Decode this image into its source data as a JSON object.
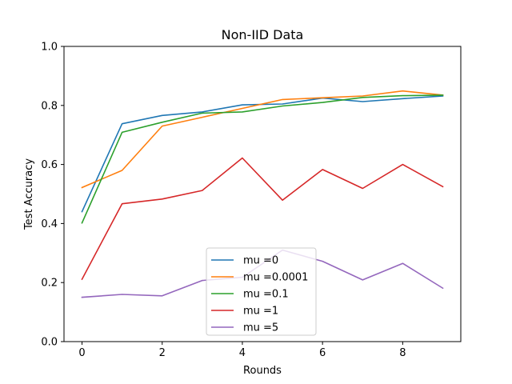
{
  "chart_data": {
    "type": "line",
    "title": "Non-IID Data",
    "xlabel": "Rounds",
    "ylabel": "Test Accuracy",
    "x": [
      0,
      1,
      2,
      3,
      4,
      5,
      6,
      7,
      8,
      9
    ],
    "xlim": [
      -0.45,
      9.45
    ],
    "ylim": [
      0.0,
      1.0
    ],
    "xticks": [
      0,
      2,
      4,
      6,
      8
    ],
    "xtick_labels": [
      "0",
      "2",
      "4",
      "6",
      "8"
    ],
    "yticks": [
      0.0,
      0.2,
      0.4,
      0.6,
      0.8,
      1.0
    ],
    "ytick_labels": [
      "0.0",
      "0.2",
      "0.4",
      "0.6",
      "0.8",
      "1.0"
    ],
    "grid": false,
    "legend_position": "bottom-center",
    "series": [
      {
        "name": "mu =0",
        "color": "#1f77b4",
        "values": [
          0.44,
          0.738,
          0.766,
          0.778,
          0.802,
          0.805,
          0.825,
          0.813,
          0.823,
          0.832
        ]
      },
      {
        "name": "mu =0.0001",
        "color": "#ff7f0e",
        "values": [
          0.522,
          0.58,
          0.73,
          0.76,
          0.79,
          0.82,
          0.826,
          0.832,
          0.849,
          0.835
        ]
      },
      {
        "name": "mu =0.1",
        "color": "#2ca02c",
        "values": [
          0.402,
          0.709,
          0.743,
          0.774,
          0.778,
          0.798,
          0.81,
          0.827,
          0.833,
          0.835
        ]
      },
      {
        "name": "mu =1",
        "color": "#d62728",
        "values": [
          0.211,
          0.467,
          0.483,
          0.512,
          0.622,
          0.479,
          0.583,
          0.519,
          0.6,
          0.525
        ]
      },
      {
        "name": "mu =5",
        "color": "#9467bd",
        "values": [
          0.15,
          0.16,
          0.155,
          0.207,
          0.218,
          0.31,
          0.272,
          0.209,
          0.265,
          0.181
        ]
      }
    ]
  }
}
